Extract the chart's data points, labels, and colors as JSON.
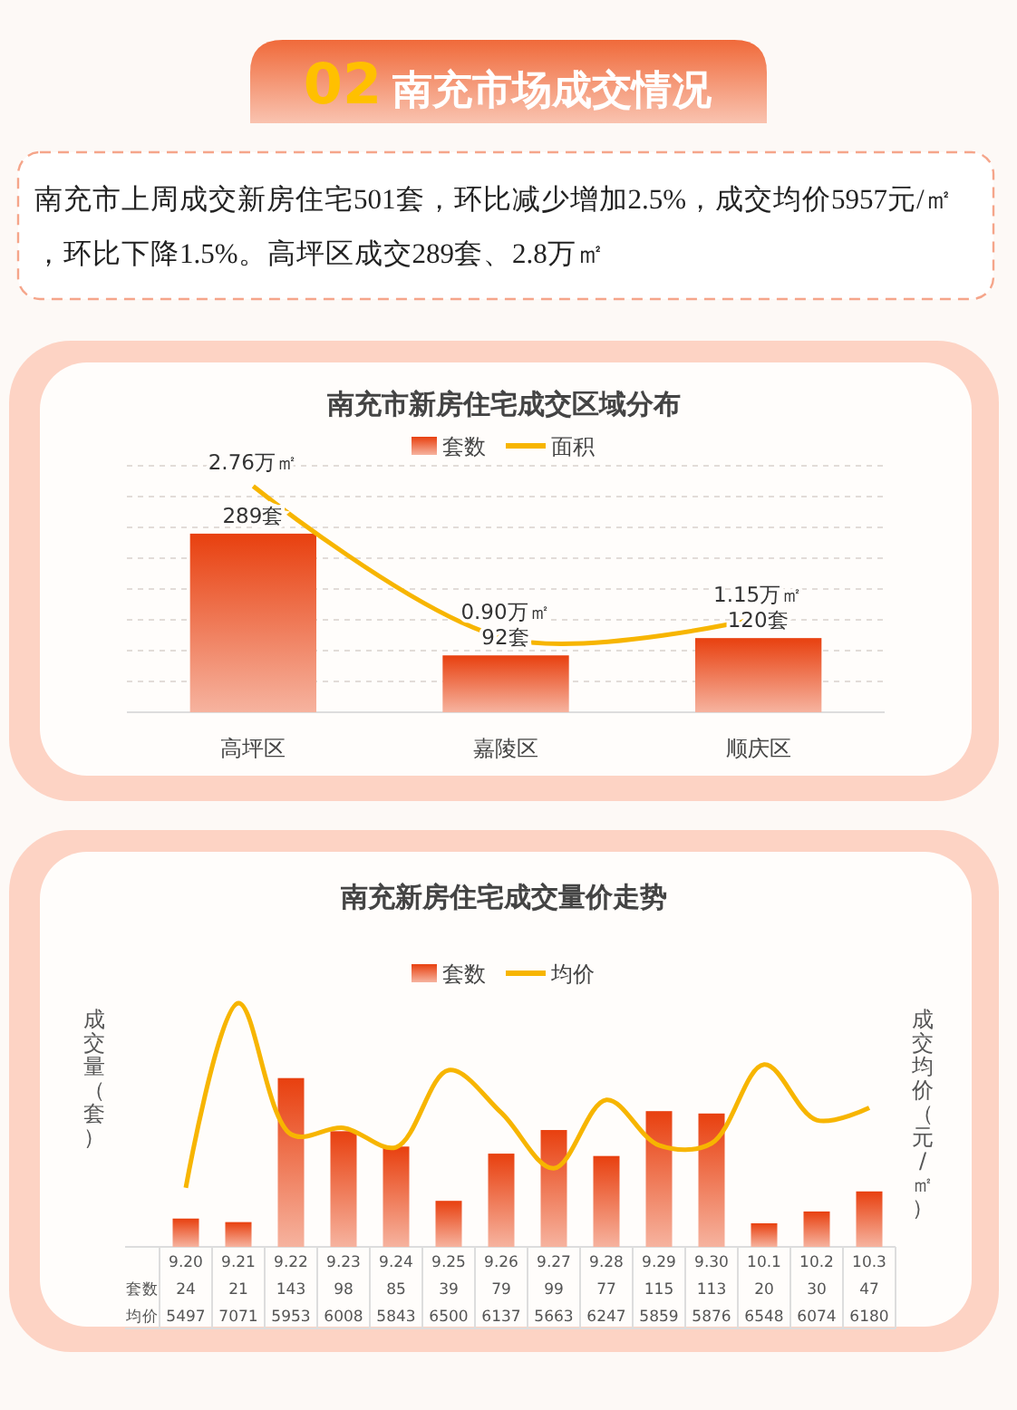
{
  "chart_data": [
    {
      "type": "other",
      "title": "02 南充市场成交情况",
      "annotations": [
        "南充市上周成交新房住宅501套，环比减少增加2.5%，成交均价5957元/㎡，环比下降1.5%。高坪区成交289套、2.8万㎡"
      ]
    },
    {
      "type": "bar",
      "title": "南充市新房住宅成交区域分布",
      "categories": [
        "高坪区",
        "嘉陵区",
        "顺庆区"
      ],
      "legend": "top",
      "grid": true,
      "series": [
        {
          "name": "套数",
          "type": "bar",
          "color": "#e8400f",
          "values": [
            289,
            92,
            120
          ],
          "value_labels": [
            "289套",
            "92套",
            "120套"
          ]
        },
        {
          "name": "面积",
          "type": "line",
          "axis": "y2",
          "color": "#f7b500",
          "values": [
            2.76,
            0.9,
            1.15
          ],
          "value_labels": [
            "2.76万㎡",
            "0.90万㎡",
            "1.15万㎡"
          ]
        }
      ]
    },
    {
      "type": "bar",
      "title": "南充新房住宅成交量价走势",
      "categories": [
        "9.20",
        "9.21",
        "9.22",
        "9.23",
        "9.24",
        "9.25",
        "9.26",
        "9.27",
        "9.28",
        "9.29",
        "9.30",
        "10.1",
        "10.2",
        "10.3"
      ],
      "ylabel": "成交量（套）",
      "y2label": "成交均价（元/㎡）",
      "legend": "top",
      "data_labels": true,
      "series": [
        {
          "name": "套数",
          "type": "bar",
          "color": "#e8400f",
          "values": [
            24,
            21,
            143,
            98,
            85,
            39,
            79,
            99,
            77,
            115,
            113,
            20,
            30,
            47
          ]
        },
        {
          "name": "均价",
          "type": "line",
          "axis": "y2",
          "color": "#f7b500",
          "values": [
            5497,
            7071,
            5953,
            6008,
            5843,
            6500,
            6137,
            5663,
            6247,
            5859,
            5876,
            6548,
            6074,
            6180
          ]
        }
      ]
    }
  ]
}
